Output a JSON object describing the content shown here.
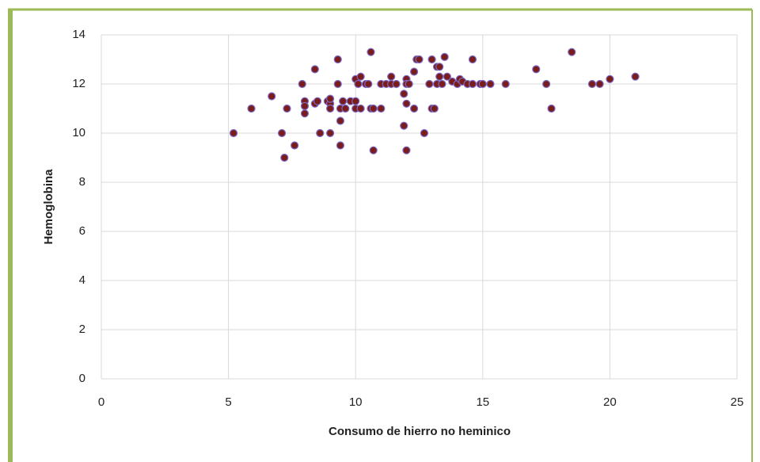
{
  "chart_data": {
    "type": "scatter",
    "x_label": "Consumo de hierro no heminico",
    "y_label": "Hemoglobina",
    "x": [
      5.2,
      5.9,
      6.7,
      7.1,
      7.2,
      7.3,
      7.6,
      7.9,
      8.0,
      8.0,
      8.0,
      8.4,
      8.4,
      8.5,
      8.6,
      8.9,
      9.0,
      9.0,
      9.0,
      9.0,
      9.3,
      9.3,
      9.4,
      9.4,
      9.4,
      9.5,
      9.6,
      9.8,
      10.0,
      10.0,
      10.0,
      10.1,
      10.2,
      10.2,
      10.4,
      10.5,
      10.6,
      10.6,
      10.7,
      10.7,
      11.0,
      11.0,
      11.2,
      11.4,
      11.4,
      11.6,
      11.9,
      11.9,
      12.0,
      12.0,
      12.0,
      12.0,
      12.1,
      12.3,
      12.3,
      12.4,
      12.5,
      12.7,
      12.9,
      13.0,
      13.0,
      13.1,
      13.2,
      13.2,
      13.3,
      13.3,
      13.4,
      13.5,
      13.6,
      13.8,
      14.0,
      14.1,
      14.2,
      14.4,
      14.6,
      14.6,
      14.9,
      15.0,
      15.3,
      15.9,
      17.1,
      17.5,
      17.7,
      18.5,
      19.3,
      19.6,
      20.0,
      21.0
    ],
    "values": [
      10,
      11,
      11.5,
      10,
      9,
      11,
      9.5,
      12,
      11.3,
      11.1,
      10.8,
      11.2,
      12.6,
      11.3,
      10,
      11.3,
      11.2,
      11.4,
      11,
      10,
      13,
      12,
      11,
      10.5,
      9.5,
      11.3,
      11,
      11.3,
      11,
      11.3,
      12.2,
      12,
      12.3,
      11,
      12,
      12,
      13.3,
      11,
      11,
      9.3,
      11,
      12,
      12,
      12.3,
      12,
      12,
      11.6,
      10.3,
      12.2,
      12,
      11.2,
      9.3,
      12,
      11,
      12.5,
      13,
      13,
      10,
      12,
      13,
      11,
      11,
      12.7,
      12,
      12.3,
      12.7,
      12,
      13.1,
      12.3,
      12.1,
      12,
      12.2,
      12.1,
      12,
      13,
      12,
      12,
      12,
      12,
      12,
      12.6,
      12,
      11,
      13.3,
      12,
      12,
      12.2,
      12.3
    ],
    "color": "#7a1c1c",
    "edge_color": "#7b6cc8",
    "xlim": [
      0,
      25
    ],
    "xticks": [
      0,
      5,
      10,
      15,
      20,
      25
    ],
    "ylim": [
      0,
      14
    ],
    "yticks": [
      0,
      2,
      4,
      6,
      8,
      10,
      12,
      14
    ],
    "grid": true
  }
}
